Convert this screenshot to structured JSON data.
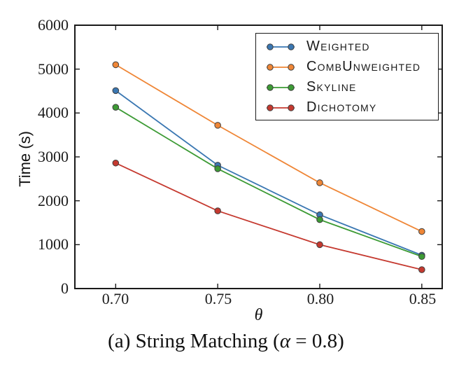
{
  "figure": {
    "caption_prefix": "(a) String Matching (",
    "caption_alpha": "α",
    "caption_suffix": " = 0.8)"
  },
  "chart_data": {
    "type": "line",
    "title": "",
    "xlabel": "θ",
    "ylabel": "Time (s)",
    "x": [
      0.7,
      0.75,
      0.8,
      0.85
    ],
    "x_tick_labels": [
      "0.70",
      "0.75",
      "0.80",
      "0.85"
    ],
    "y_ticks": [
      0,
      1000,
      2000,
      3000,
      4000,
      5000,
      6000
    ],
    "y_tick_labels": [
      "0",
      "1000",
      "2000",
      "3000",
      "4000",
      "5000",
      "6000"
    ],
    "xlim": [
      0.68,
      0.86
    ],
    "ylim": [
      0,
      6000
    ],
    "grid": false,
    "legend_position": "upper-right-inside",
    "marker": "circle",
    "marker_edge_color": "#3f3f3f",
    "axis_color": "#1a1a1a",
    "series": [
      {
        "name": "Weighted",
        "color": "#3a77b2",
        "values": [
          4510,
          2810,
          1680,
          760
        ]
      },
      {
        "name": "CombUnweighted",
        "color": "#ef8636",
        "values": [
          5100,
          3720,
          2410,
          1300
        ]
      },
      {
        "name": "Skyline",
        "color": "#3d9b35",
        "values": [
          4130,
          2730,
          1570,
          730
        ]
      },
      {
        "name": "Dichotomy",
        "color": "#c5392f",
        "values": [
          2860,
          1770,
          1000,
          430
        ]
      }
    ]
  }
}
